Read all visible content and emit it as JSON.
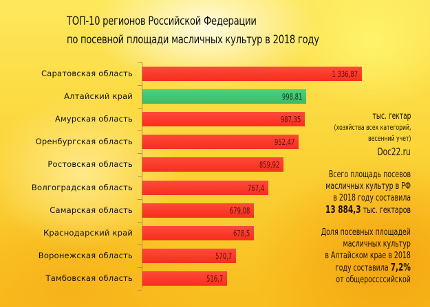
{
  "header": {
    "title_line1": "ТОП-10 регионов Российской Федерации",
    "title_line2": "по посевной площади масличных культур в 2018 году"
  },
  "sidebar": {
    "unit_line1": "тыс. гектар",
    "unit_line2": "(хозяйства всех категорий,",
    "unit_line3": "весенний учет)",
    "site": "Doc22.ru",
    "total_line1": "Всего площадь посевов",
    "total_line2": "масличных культур в РФ",
    "total_line3": "в 2018 году составила",
    "total_value": "13 884,3",
    "total_unit": "тыс. гектаров",
    "share_line1": "Доля посевных площадей",
    "share_line2": "масличных культур",
    "share_line3": "в Алтайском крае в 2018",
    "share_line4_pre": "году составила",
    "share_value": "7,2%",
    "share_line5": "от общероссcсийской"
  },
  "colors": {
    "bar": "#f7321f",
    "highlight": "#43c070",
    "background": "#fbd63a"
  },
  "chart_data": {
    "type": "bar",
    "orientation": "horizontal",
    "title": "ТОП-10 регионов Российской Федерации по посевной площади масличных культур в 2018 году",
    "xlabel": "тыс. гектар",
    "ylabel": "",
    "grid": false,
    "legend": null,
    "highlight_category": "Алтайский край",
    "categories": [
      "Саратовская область",
      "Алтайский край",
      "Амурская область",
      "Оренбургская область",
      "Ростовская область",
      "Волгоградская область",
      "Самарская область",
      "Краснодарский край",
      "Воронежская область",
      "Тамбовская область"
    ],
    "values": [
      1336.87,
      998.81,
      987.35,
      952.47,
      859.92,
      767.4,
      679.08,
      678.5,
      570.7,
      516.7
    ],
    "value_labels": [
      "1 336,87",
      "998,81",
      "987,35",
      "952,47",
      "859,92",
      "767,4",
      "679,08",
      "678,5",
      "570,7",
      "516,7"
    ]
  }
}
